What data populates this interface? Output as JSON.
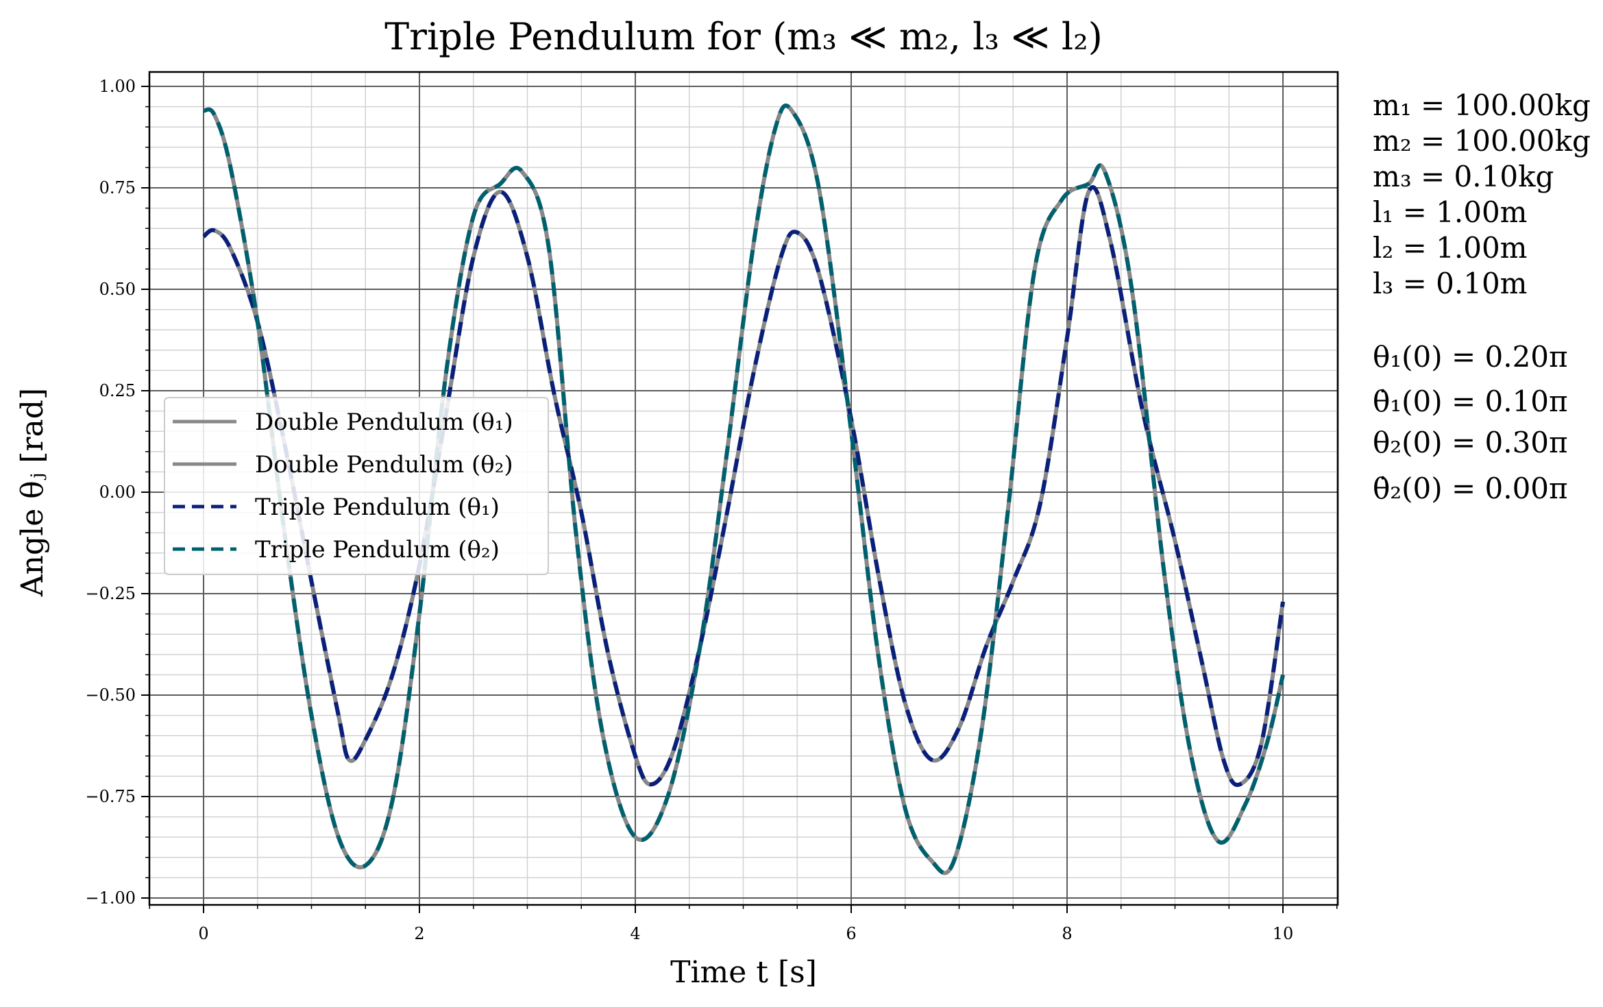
{
  "chart_data": {
    "type": "line",
    "title": "Triple Pendulum for (m₃ ≪ m₂, l₃ ≪ l₂)",
    "xlabel": "Time t [s]",
    "ylabel": "Angle θⱼ [rad]",
    "xlim": [
      -0.5,
      10.5
    ],
    "ylim": [
      -1.02,
      1.04
    ],
    "x_ticks": [
      0,
      2,
      4,
      6,
      8,
      10
    ],
    "x_tick_labels": [
      "0",
      "2",
      "4",
      "6",
      "8",
      "10"
    ],
    "y_ticks": [
      1.0,
      0.75,
      0.5,
      0.25,
      0.0,
      -0.25,
      -0.5,
      -0.75,
      -1.0
    ],
    "y_tick_labels": [
      "1.00",
      "0.75",
      "0.50",
      "0.25",
      "0.00",
      "−0.25",
      "−0.50",
      "−0.75",
      "−1.00"
    ],
    "grid": "major and minor",
    "legend_position": "center-left",
    "theta1_points": [
      [
        0,
        0.63
      ],
      [
        0.1,
        0.645
      ],
      [
        0.25,
        0.6
      ],
      [
        0.5,
        0.42
      ],
      [
        0.75,
        0.12
      ],
      [
        1.0,
        -0.22
      ],
      [
        1.25,
        -0.55
      ],
      [
        1.35,
        -0.66
      ],
      [
        1.5,
        -0.61
      ],
      [
        1.75,
        -0.45
      ],
      [
        2.0,
        -0.18
      ],
      [
        2.25,
        0.2
      ],
      [
        2.5,
        0.58
      ],
      [
        2.75,
        0.74
      ],
      [
        3.0,
        0.58
      ],
      [
        3.25,
        0.24
      ],
      [
        3.5,
        -0.05
      ],
      [
        3.75,
        -0.4
      ],
      [
        4.0,
        -0.65
      ],
      [
        4.15,
        -0.72
      ],
      [
        4.35,
        -0.64
      ],
      [
        4.6,
        -0.38
      ],
      [
        4.85,
        -0.05
      ],
      [
        5.1,
        0.3
      ],
      [
        5.35,
        0.58
      ],
      [
        5.5,
        0.64
      ],
      [
        5.7,
        0.54
      ],
      [
        6.0,
        0.18
      ],
      [
        6.25,
        -0.2
      ],
      [
        6.5,
        -0.52
      ],
      [
        6.75,
        -0.66
      ],
      [
        7.0,
        -0.58
      ],
      [
        7.25,
        -0.38
      ],
      [
        7.5,
        -0.22
      ],
      [
        7.75,
        -0.03
      ],
      [
        8.0,
        0.38
      ],
      [
        8.2,
        0.74
      ],
      [
        8.4,
        0.62
      ],
      [
        8.7,
        0.2
      ],
      [
        9.0,
        -0.12
      ],
      [
        9.25,
        -0.42
      ],
      [
        9.45,
        -0.66
      ],
      [
        9.6,
        -0.72
      ],
      [
        9.8,
        -0.62
      ],
      [
        10.0,
        -0.27
      ]
    ],
    "theta2_points": [
      [
        0,
        0.94
      ],
      [
        0.1,
        0.93
      ],
      [
        0.25,
        0.8
      ],
      [
        0.5,
        0.42
      ],
      [
        0.75,
        -0.1
      ],
      [
        1.0,
        -0.55
      ],
      [
        1.25,
        -0.85
      ],
      [
        1.5,
        -0.92
      ],
      [
        1.75,
        -0.76
      ],
      [
        2.0,
        -0.3
      ],
      [
        2.25,
        0.3
      ],
      [
        2.5,
        0.68
      ],
      [
        2.75,
        0.76
      ],
      [
        2.95,
        0.79
      ],
      [
        3.2,
        0.6
      ],
      [
        3.45,
        -0.1
      ],
      [
        3.7,
        -0.6
      ],
      [
        4.0,
        -0.85
      ],
      [
        4.3,
        -0.75
      ],
      [
        4.6,
        -0.38
      ],
      [
        4.85,
        0.1
      ],
      [
        5.1,
        0.62
      ],
      [
        5.3,
        0.9
      ],
      [
        5.45,
        0.94
      ],
      [
        5.7,
        0.75
      ],
      [
        6.0,
        0.15
      ],
      [
        6.25,
        -0.4
      ],
      [
        6.5,
        -0.78
      ],
      [
        6.75,
        -0.91
      ],
      [
        6.95,
        -0.91
      ],
      [
        7.2,
        -0.6
      ],
      [
        7.45,
        -0.05
      ],
      [
        7.7,
        0.55
      ],
      [
        7.95,
        0.72
      ],
      [
        8.2,
        0.76
      ],
      [
        8.35,
        0.79
      ],
      [
        8.6,
        0.5
      ],
      [
        8.9,
        -0.2
      ],
      [
        9.15,
        -0.65
      ],
      [
        9.4,
        -0.86
      ],
      [
        9.65,
        -0.77
      ],
      [
        9.85,
        -0.62
      ],
      [
        10.0,
        -0.45
      ]
    ],
    "series": [
      {
        "name": "Double Pendulum (θ₁)",
        "points_key": "theta1_points",
        "color": "#888888",
        "style": "solid"
      },
      {
        "name": "Double Pendulum (θ₂)",
        "points_key": "theta2_points",
        "color": "#888888",
        "style": "solid"
      },
      {
        "name": "Triple Pendulum (θ₁)",
        "points_key": "theta1_points",
        "color": "#0a1f7a",
        "style": "dashed"
      },
      {
        "name": "Triple Pendulum (θ₂)",
        "points_key": "theta2_points",
        "color": "#00606e",
        "style": "dashed"
      }
    ],
    "parameters": [
      "m₁ = 100.00kg",
      "m₂ = 100.00kg",
      "m₃ = 0.10kg",
      "l₁ = 1.00m",
      "l₂ = 1.00m",
      "l₃ = 0.10m",
      "θ₁(0) = 0.20π",
      "θ̇₁(0) = 0.10π",
      "θ₂(0) = 0.30π",
      "θ̇₂(0) = 0.00π"
    ]
  }
}
